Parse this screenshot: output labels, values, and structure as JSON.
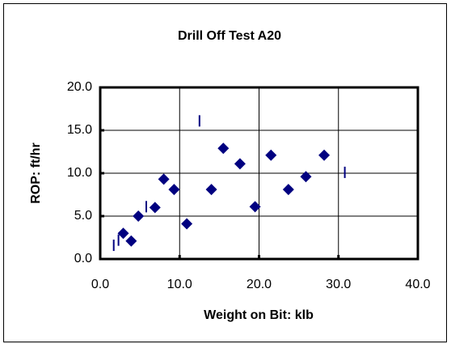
{
  "chart_data": {
    "type": "scatter",
    "title": "Drill Off Test A20",
    "x_label": "Weight on Bit: klb",
    "y_label": "ROP: ft/hr",
    "xlim": [
      0,
      40
    ],
    "ylim": [
      0,
      20
    ],
    "xticks": [
      {
        "value": 0,
        "label": "0.0"
      },
      {
        "value": 10,
        "label": "10.0"
      },
      {
        "value": 20,
        "label": "20.0"
      },
      {
        "value": 30,
        "label": "30.0"
      },
      {
        "value": 40,
        "label": "40.0"
      }
    ],
    "yticks": [
      {
        "value": 0,
        "label": "0.0"
      },
      {
        "value": 5,
        "label": "5.0"
      },
      {
        "value": 10,
        "label": "10.0"
      },
      {
        "value": 15,
        "label": "15.0"
      },
      {
        "value": 20,
        "label": "20.0"
      }
    ],
    "grid": true,
    "series": [
      {
        "color": "#000080",
        "marker": "diamond",
        "x": [
          2.9,
          3.9,
          4.8,
          6.9,
          8.0,
          9.3,
          10.9,
          14.0,
          15.5,
          17.6,
          19.5,
          21.5,
          23.7,
          25.9,
          28.2
        ],
        "values": [
          3.0,
          2.1,
          5.0,
          6.0,
          9.3,
          8.1,
          4.1,
          8.1,
          12.9,
          11.1,
          6.1,
          12.1,
          8.1,
          9.6,
          12.1
        ]
      },
      {
        "color": "#000080",
        "marker": "dash",
        "x": [
          1.7,
          2.3,
          5.8,
          12.5,
          30.8
        ],
        "values": [
          1.6,
          2.2,
          6.1,
          16.1,
          10.1
        ]
      }
    ]
  }
}
